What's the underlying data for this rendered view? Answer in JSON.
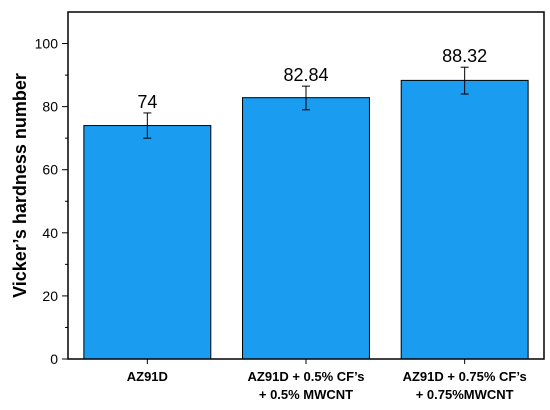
{
  "chart_data": {
    "type": "bar",
    "categories": [
      [
        "AZ91D"
      ],
      [
        "AZ91D + 0.5% CF’s",
        "+ 0.5% MWCNT"
      ],
      [
        "AZ91D + 0.75% CF’s",
        "+ 0.75%MWCNT"
      ]
    ],
    "values": [
      74,
      82.84,
      88.32
    ],
    "data_labels": [
      "74",
      "82.84",
      "88.32"
    ],
    "error_bars": [
      [
        70,
        78
      ],
      [
        79,
        86.5
      ],
      [
        84,
        92.5
      ]
    ],
    "ylabel": "Vicker’s hardness number",
    "xlabel": "",
    "title": "",
    "ylim": [
      0,
      110
    ],
    "yticks": [
      0,
      20,
      40,
      60,
      80,
      100
    ],
    "bar_color": "#1a9cf0",
    "grid": false,
    "legend": "none"
  }
}
